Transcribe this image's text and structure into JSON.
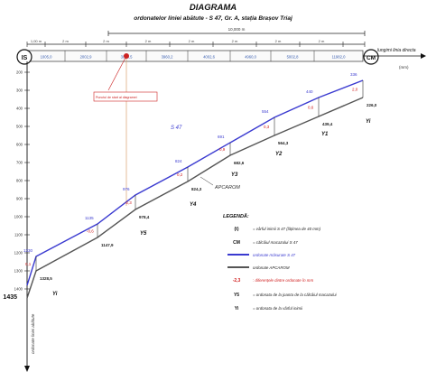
{
  "title": "DIAGRAMA",
  "subtitle": "ordonatelor liniei abătute - S 47, Gr. A, stația Brașov Triaj",
  "top_span": "10,000 m",
  "segments": [
    "1,00 m",
    "2 m",
    "2 m",
    "2 m",
    "2 m",
    "2 m",
    "2 m",
    "2 m"
  ],
  "stations": [
    "1005,0",
    "2002,9",
    "3005,5",
    "3960,2",
    "4002,6",
    "4960,0",
    "5002,8",
    "11982,0"
  ],
  "tick_labels": [
    "200",
    "300",
    "400",
    "500",
    "600",
    "700",
    "800",
    "900",
    "1000",
    "1100",
    "1200",
    "1300",
    "1400"
  ],
  "is_label": "IS",
  "cm_label": "CM",
  "x_axis_label": "lungimi linia directa",
  "x_unit": "(mm)",
  "y_axis_label": "ordonate liniei abătute",
  "start_value": "1435",
  "note_label": "Punctul de start al diagramei",
  "s47_label": "S 47",
  "apcarom_label": "APCAROM",
  "s47_values": [
    "1330",
    "1135",
    "976",
    "824",
    "691",
    "554",
    "440",
    "336"
  ],
  "apcarom_values": [
    "1328,5",
    "1147,9",
    "978,4",
    "824,3",
    "682,6",
    "564,3",
    "439,4",
    "226,0"
  ],
  "diff_values": [
    "0,1",
    "-0,6",
    "-2,3",
    "0,2",
    "0,9",
    "0,3",
    "0,6",
    "2,0"
  ],
  "marker_labels": [
    "Yi",
    "Y5",
    "Y4",
    "Y3",
    "Y2",
    "Y1",
    "Yi"
  ],
  "legend": {
    "title": "LEGENDĂ:",
    "items": [
      {
        "key": "(t)",
        "text": "= vârful inimii S 47 (lățimea de 40 mm)"
      },
      {
        "key": "CM",
        "text": "= călcâiul macazului S 47"
      },
      {
        "key": "",
        "text": "ordonate măsurate S 47"
      },
      {
        "key": "",
        "text": "ordonate APCAROM"
      },
      {
        "key": "-2,3",
        "text": ": diferențele dintre ordonate în mm"
      },
      {
        "key": "Y5",
        "text": "= ordonata de la joanta de la călcâiul macazului"
      },
      {
        "key": "Yi",
        "text": "= ordonata de la vârful inimii"
      }
    ]
  },
  "colors": {
    "s47": "#3a3ad0",
    "apcarom": "#555555",
    "diff": "#d02020",
    "note": "#cc2222",
    "station": "#3a5fb0"
  }
}
